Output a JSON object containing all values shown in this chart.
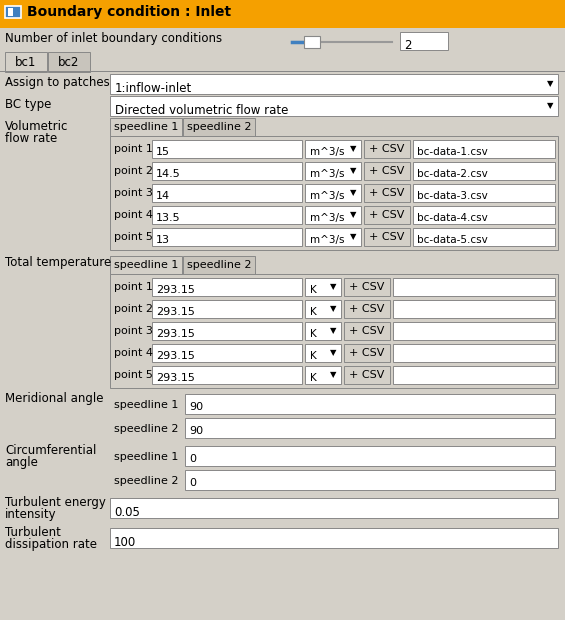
{
  "title": "Boundary condition : Inlet",
  "title_bg": "#F5A000",
  "bg_color": "#D4D0C8",
  "white": "#FFFFFF",
  "black": "#000000",
  "border_color": "#888888",
  "header_icon_color": "#4080C0",
  "slider_color": "#4080C0",
  "num_inlet_label": "Number of inlet boundary conditions",
  "num_inlet_value": "2",
  "assign_label": "Assign to patches",
  "assign_value": "1:inflow-inlet",
  "bc_type_label": "BC type",
  "bc_type_value": "Directed volumetric flow rate",
  "vol_points": [
    "point 1",
    "point 2",
    "point 3",
    "point 4",
    "point 5"
  ],
  "vol_values": [
    "15",
    "14.5",
    "14",
    "13.5",
    "13"
  ],
  "vol_unit": "m^3/s",
  "vol_csv_files": [
    "bc-data-1.csv",
    "bc-data-2.csv",
    "bc-data-3.csv",
    "bc-data-4.csv",
    "bc-data-5.csv"
  ],
  "temp_values": [
    "293.15",
    "293.15",
    "293.15",
    "293.15",
    "293.15"
  ],
  "meridional_values": [
    "90",
    "90"
  ],
  "circumferential_values": [
    "0",
    "0"
  ],
  "turbulent_energy_value": "0.05",
  "turbulent_dissipation_value": "100"
}
